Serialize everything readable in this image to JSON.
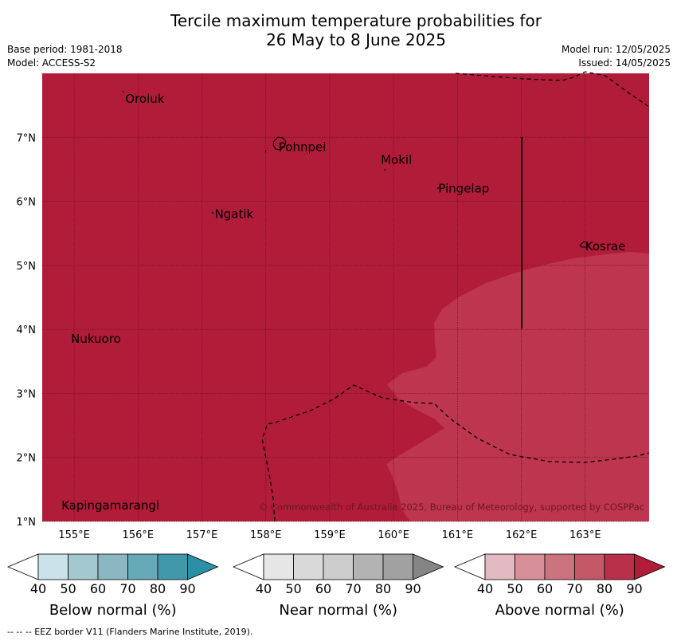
{
  "header": {
    "title_line1": "Tercile maximum temperature probabilities for",
    "title_line2": "26 May to 8 June 2025",
    "base_period": "Base period: 1981-2018",
    "model": "Model: ACCESS-S2",
    "model_run": "Model run: 12/05/2025",
    "issued": "Issued: 14/05/2025"
  },
  "map": {
    "lon_range": [
      154.5,
      164.0
    ],
    "lat_range": [
      1.0,
      8.0
    ],
    "grid": true,
    "x_ticks": [
      "155°E",
      "156°E",
      "157°E",
      "158°E",
      "159°E",
      "160°E",
      "161°E",
      "162°E",
      "163°E"
    ],
    "y_ticks": [
      "1°N",
      "2°N",
      "3°N",
      "4°N",
      "5°N",
      "6°N",
      "7°N"
    ],
    "colors": {
      "above_80_90": "#b11c39",
      "above_70_80": "#be3550",
      "coastline": "#000000",
      "eez_border": "#000000"
    },
    "places": [
      {
        "name": "Oroluk",
        "lon": 155.8,
        "lat": 7.6
      },
      {
        "name": "Pohnpei",
        "lon": 158.2,
        "lat": 6.85
      },
      {
        "name": "Mokil",
        "lon": 159.8,
        "lat": 6.65
      },
      {
        "name": "Pingelap",
        "lon": 160.7,
        "lat": 6.2
      },
      {
        "name": "Ngatik",
        "lon": 157.2,
        "lat": 5.8
      },
      {
        "name": "Kosrae",
        "lon": 163.0,
        "lat": 5.3
      },
      {
        "name": "Nukuoro",
        "lon": 154.95,
        "lat": 3.85
      },
      {
        "name": "Kapingamarangi",
        "lon": 154.8,
        "lat": 1.25
      }
    ],
    "copyright": "© Commonwealth of Australia 2025, Bureau of Meteorology, supported by COSPPac"
  },
  "colorbars": [
    {
      "label": "Below normal (%)",
      "colors": [
        "#ffffff",
        "#c9e3e9",
        "#a4c8cf",
        "#8ab7c2",
        "#66aab7",
        "#4298ab",
        "#2990a8"
      ]
    },
    {
      "label": "Near normal (%)",
      "colors": [
        "#ffffff",
        "#e6e6e6",
        "#d9d9d9",
        "#cccccc",
        "#b3b3b3",
        "#a1a1a1",
        "#858585"
      ]
    },
    {
      "label": "Above normal (%)",
      "colors": [
        "#ffffff",
        "#e3b9c2",
        "#d89098",
        "#cd737f",
        "#c45866",
        "#b9304a",
        "#b11c39"
      ]
    }
  ],
  "colorbar_ticks": [
    "40",
    "50",
    "60",
    "70",
    "80",
    "90"
  ],
  "footer": "--  --  -- EEZ border V11 (Flanders Marine Institute, 2019)."
}
